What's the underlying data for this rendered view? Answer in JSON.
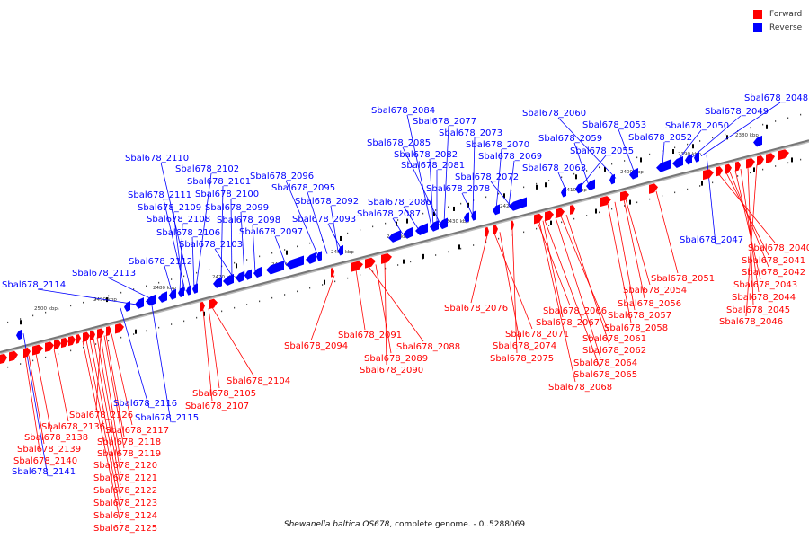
{
  "legend": {
    "items": [
      {
        "label": "Forward",
        "color": "#ff0000"
      },
      {
        "label": "Reverse",
        "color": "#0000ff"
      }
    ]
  },
  "caption": {
    "organism": "Shewanella baltica OS678",
    "rest": ", complete genome. - 0..5288069"
  },
  "colors": {
    "forward": "#ff0000",
    "reverse": "#0000ff",
    "backbone": "#888888"
  },
  "ticks": [
    "2380 kbp",
    "2390 kbp",
    "2400 kbp",
    "2410 kbp",
    "2420 kbp",
    "2430 kbp",
    "2440 kbp",
    "2450 kbp",
    "2460 kbp",
    "2470 kbp",
    "2480 kbp",
    "2490 kbp",
    "2500 kbp"
  ],
  "reverse_labels": [
    "Sbal678_2048",
    "Sbal678_2049",
    "Sbal678_2050",
    "Sbal678_2052",
    "Sbal678_2053",
    "Sbal678_2060",
    "Sbal678_2059",
    "Sbal678_2055",
    "Sbal678_2063",
    "Sbal678_2084",
    "Sbal678_2077",
    "Sbal678_2073",
    "Sbal678_2085",
    "Sbal678_2070",
    "Sbal678_2082",
    "Sbal678_2069",
    "Sbal678_2081",
    "Sbal678_2072",
    "Sbal678_2078",
    "Sbal678_2086",
    "Sbal678_2087",
    "Sbal678_2096",
    "Sbal678_2095",
    "Sbal678_2092",
    "Sbal678_2093",
    "Sbal678_2110",
    "Sbal678_2102",
    "Sbal678_2101",
    "Sbal678_2111",
    "Sbal678_2100",
    "Sbal678_2109",
    "Sbal678_2099",
    "Sbal678_2108",
    "Sbal678_2098",
    "Sbal678_2106",
    "Sbal678_2097",
    "Sbal678_2103",
    "Sbal678_2112",
    "Sbal678_2113",
    "Sbal678_2114",
    "Sbal678_2047",
    "Sbal678_2116",
    "Sbal678_2115",
    "Sbal678_2141"
  ],
  "forward_labels": [
    "Sbal678_2040",
    "Sbal678_2041",
    "Sbal678_2042",
    "Sbal678_2043",
    "Sbal678_2044",
    "Sbal678_2045",
    "Sbal678_2046",
    "Sbal678_2051",
    "Sbal678_2054",
    "Sbal678_2056",
    "Sbal678_2057",
    "Sbal678_2058",
    "Sbal678_2066",
    "Sbal678_2067",
    "Sbal678_2061",
    "Sbal678_2062",
    "Sbal678_2064",
    "Sbal678_2065",
    "Sbal678_2068",
    "Sbal678_2076",
    "Sbal678_2071",
    "Sbal678_2074",
    "Sbal678_2075",
    "Sbal678_2094",
    "Sbal678_2091",
    "Sbal678_2088",
    "Sbal678_2089",
    "Sbal678_2090",
    "Sbal678_2104",
    "Sbal678_2105",
    "Sbal678_2107",
    "Sbal678_2126",
    "Sbal678_2136",
    "Sbal678_2117",
    "Sbal678_2138",
    "Sbal678_2118",
    "Sbal678_2139",
    "Sbal678_2119",
    "Sbal678_2140",
    "Sbal678_2120",
    "Sbal678_2121",
    "Sbal678_2122",
    "Sbal678_2123",
    "Sbal678_2124",
    "Sbal678_2125"
  ]
}
